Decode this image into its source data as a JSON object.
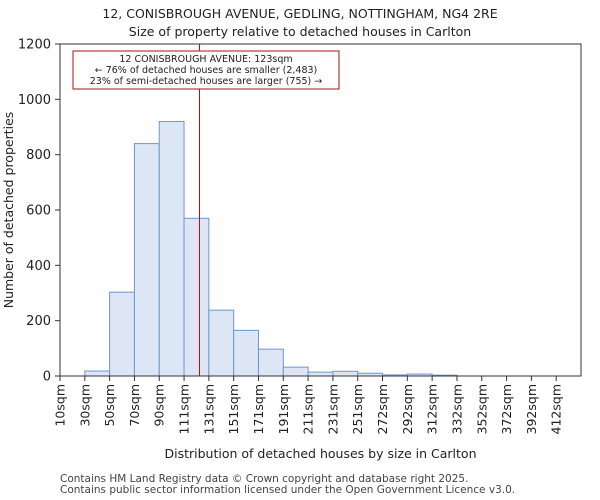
{
  "chart_data": {
    "type": "bar",
    "title": "12, CONISBROUGH AVENUE, GEDLING, NOTTINGHAM, NG4 2RE",
    "subtitle": "Size of property relative to detached houses in Carlton",
    "xlabel": "Distribution of detached houses by size in Carlton",
    "ylabel": "Number of detached properties",
    "ylim": [
      0,
      1200
    ],
    "yticks": [
      0,
      200,
      400,
      600,
      800,
      1000,
      1200
    ],
    "categories": [
      "10sqm",
      "30sqm",
      "50sqm",
      "70sqm",
      "90sqm",
      "111sqm",
      "131sqm",
      "151sqm",
      "171sqm",
      "191sqm",
      "211sqm",
      "231sqm",
      "251sqm",
      "272sqm",
      "292sqm",
      "312sqm",
      "332sqm",
      "352sqm",
      "372sqm",
      "392sqm",
      "412sqm"
    ],
    "values": [
      0,
      18,
      303,
      840,
      920,
      570,
      238,
      165,
      97,
      32,
      14,
      17,
      10,
      4,
      7,
      3,
      0,
      0,
      0,
      0,
      0
    ],
    "bar_color": "#dce6f5",
    "bar_edge_color": "#6e96cf",
    "marker": {
      "value_sqm": 123,
      "color": "#aa1111"
    },
    "annotation": {
      "line1": "12 CONISBROUGH AVENUE: 123sqm",
      "line2": "← 76% of detached houses are smaller (2,483)",
      "line3": "23% of semi-detached houses are larger (755) →"
    },
    "grid": false
  },
  "footer": {
    "line1": "Contains HM Land Registry data © Crown copyright and database right 2025.",
    "line2": "Contains public sector information licensed under the Open Government Licence v3.0."
  }
}
